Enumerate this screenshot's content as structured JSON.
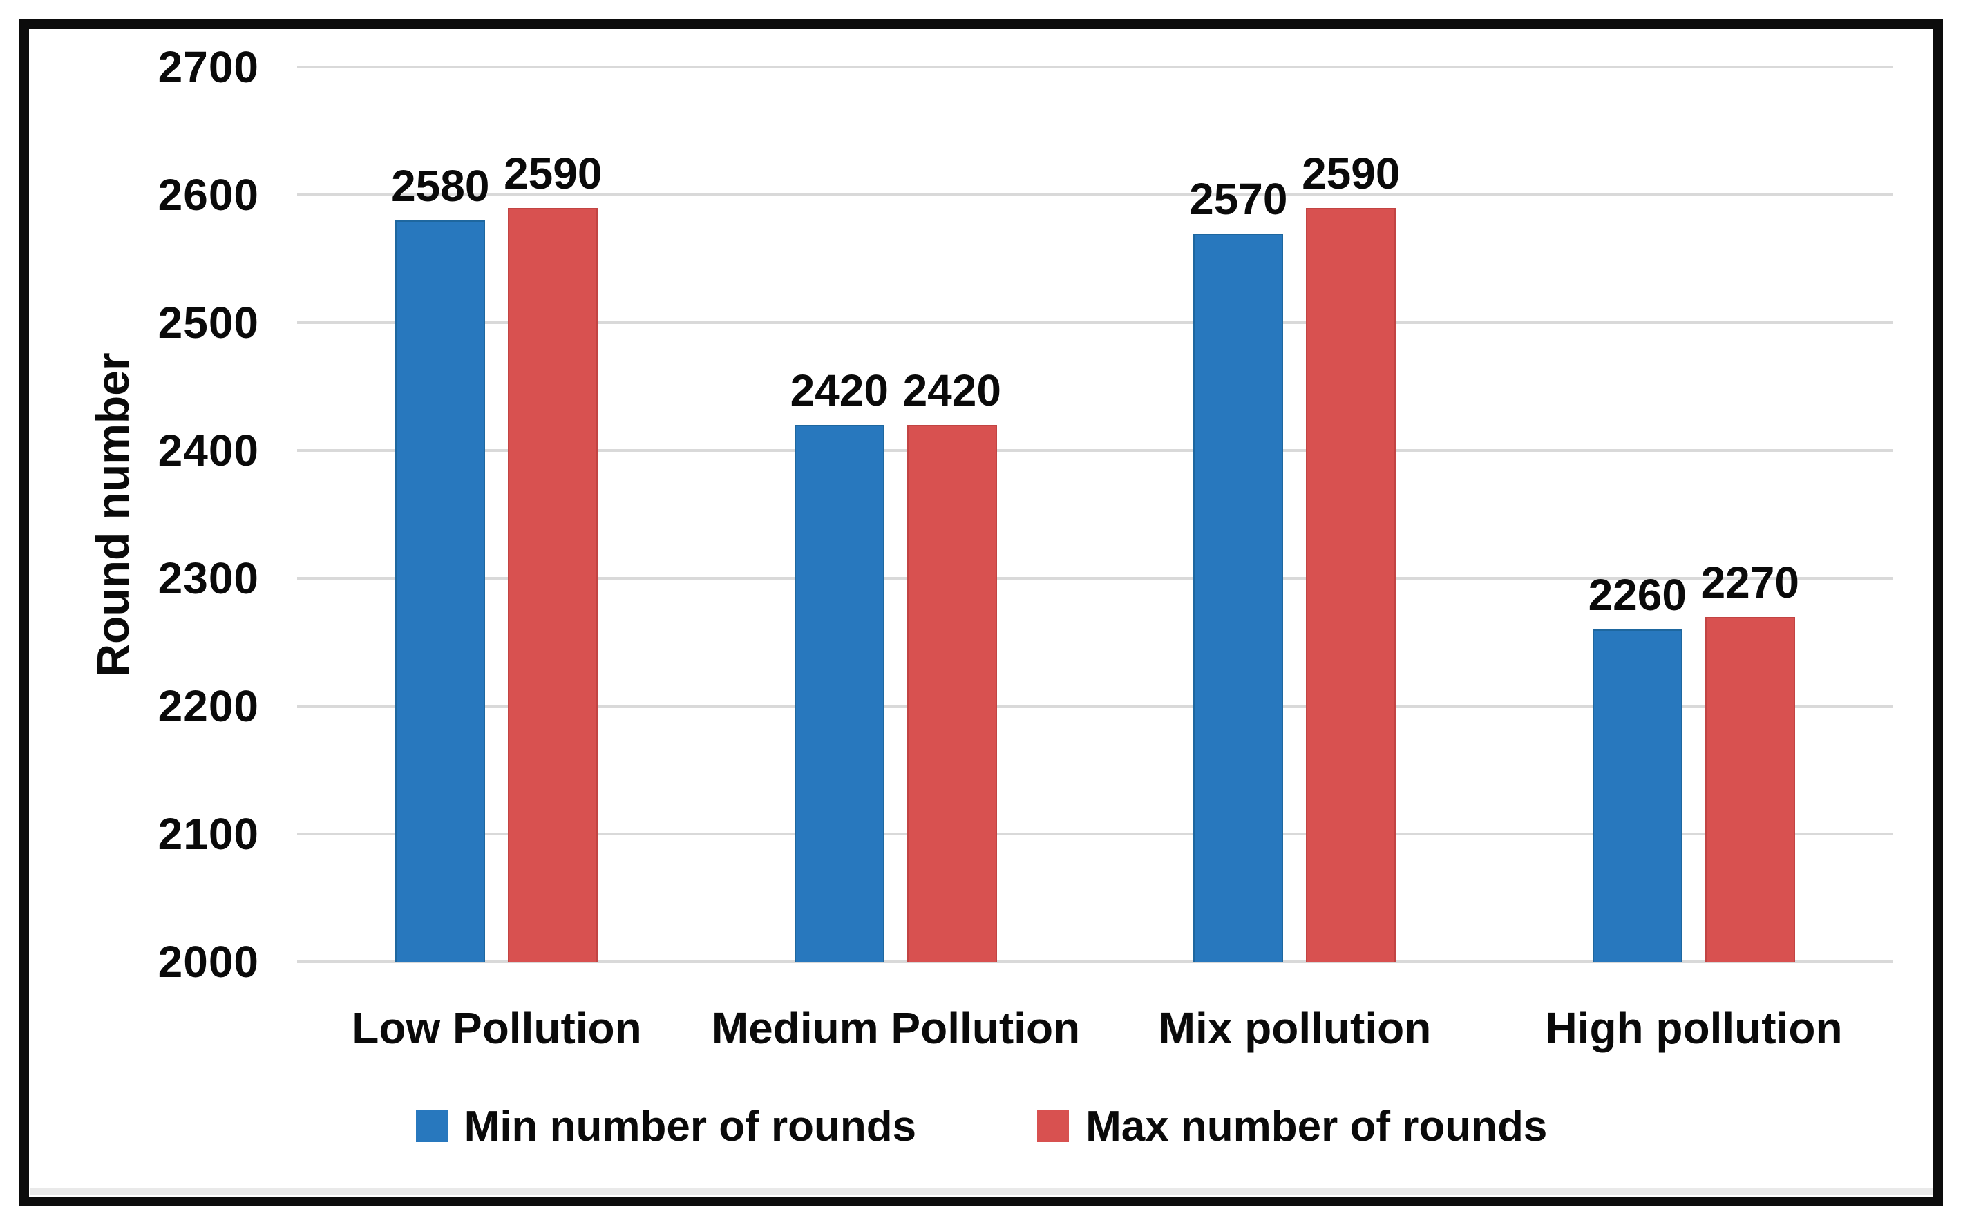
{
  "chart_data": {
    "type": "bar",
    "title": "",
    "categories": [
      "Low Pollution",
      "Medium Pollution",
      "Mix pollution",
      "High pollution"
    ],
    "series": [
      {
        "name": "Min number of rounds",
        "color": "#2878be",
        "border_color": "#1e679f",
        "values": [
          2580,
          2420,
          2570,
          2260
        ]
      },
      {
        "name": "Max number of rounds",
        "color": "#d85150",
        "border_color": "#c24443",
        "values": [
          2590,
          2420,
          2590,
          2270
        ]
      }
    ],
    "data_labels": {
      "min": [
        "2580",
        "2420",
        "2570",
        "2260"
      ],
      "max": [
        "2590",
        "2420",
        "2590",
        "2270"
      ]
    },
    "xlabel": "",
    "ylabel": "Round number",
    "ylim": [
      2000,
      2700
    ],
    "ytick_step": 100,
    "yticks": [
      "2000",
      "2100",
      "2200",
      "2300",
      "2400",
      "2500",
      "2600",
      "2700"
    ],
    "grid": "horizontal",
    "gridline_color": "#d9d9d9",
    "legend_position": "bottom",
    "legend": [
      "Min number of rounds",
      "Max number of rounds"
    ],
    "frame_color": "#0c0c0c",
    "text_color": "#0a0a0a",
    "background": "#ffffff"
  }
}
